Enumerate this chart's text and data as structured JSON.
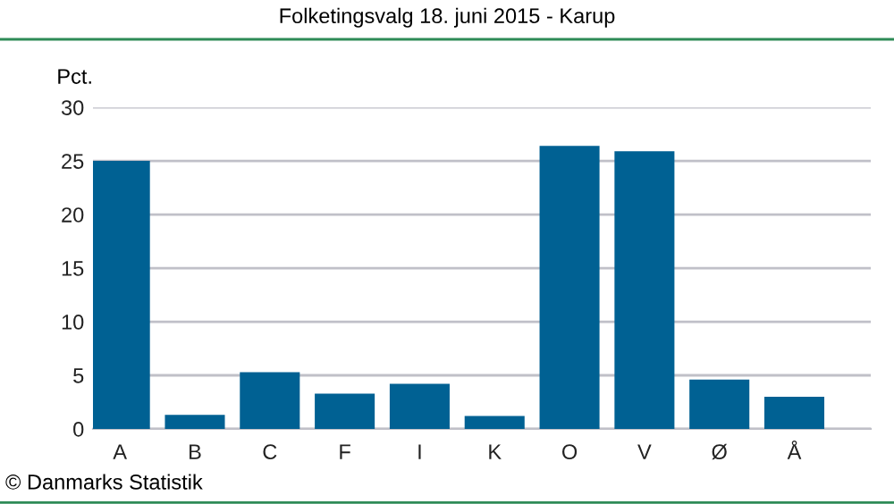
{
  "chart_data": {
    "type": "bar",
    "title": "Folketingsvalg 18. juni 2015 - Karup",
    "ylabel": "Pct.",
    "categories": [
      "A",
      "B",
      "C",
      "F",
      "I",
      "K",
      "O",
      "V",
      "Ø",
      "Å"
    ],
    "values": [
      25.0,
      1.3,
      5.3,
      3.3,
      4.2,
      1.2,
      26.4,
      25.9,
      4.6,
      3.0
    ],
    "color": "#006193",
    "ylim": [
      0,
      30
    ],
    "yticks": [
      0,
      5,
      10,
      15,
      20,
      25,
      30
    ],
    "grid": "y",
    "legend": false,
    "annotations": [
      "© Danmarks Statistik"
    ]
  }
}
